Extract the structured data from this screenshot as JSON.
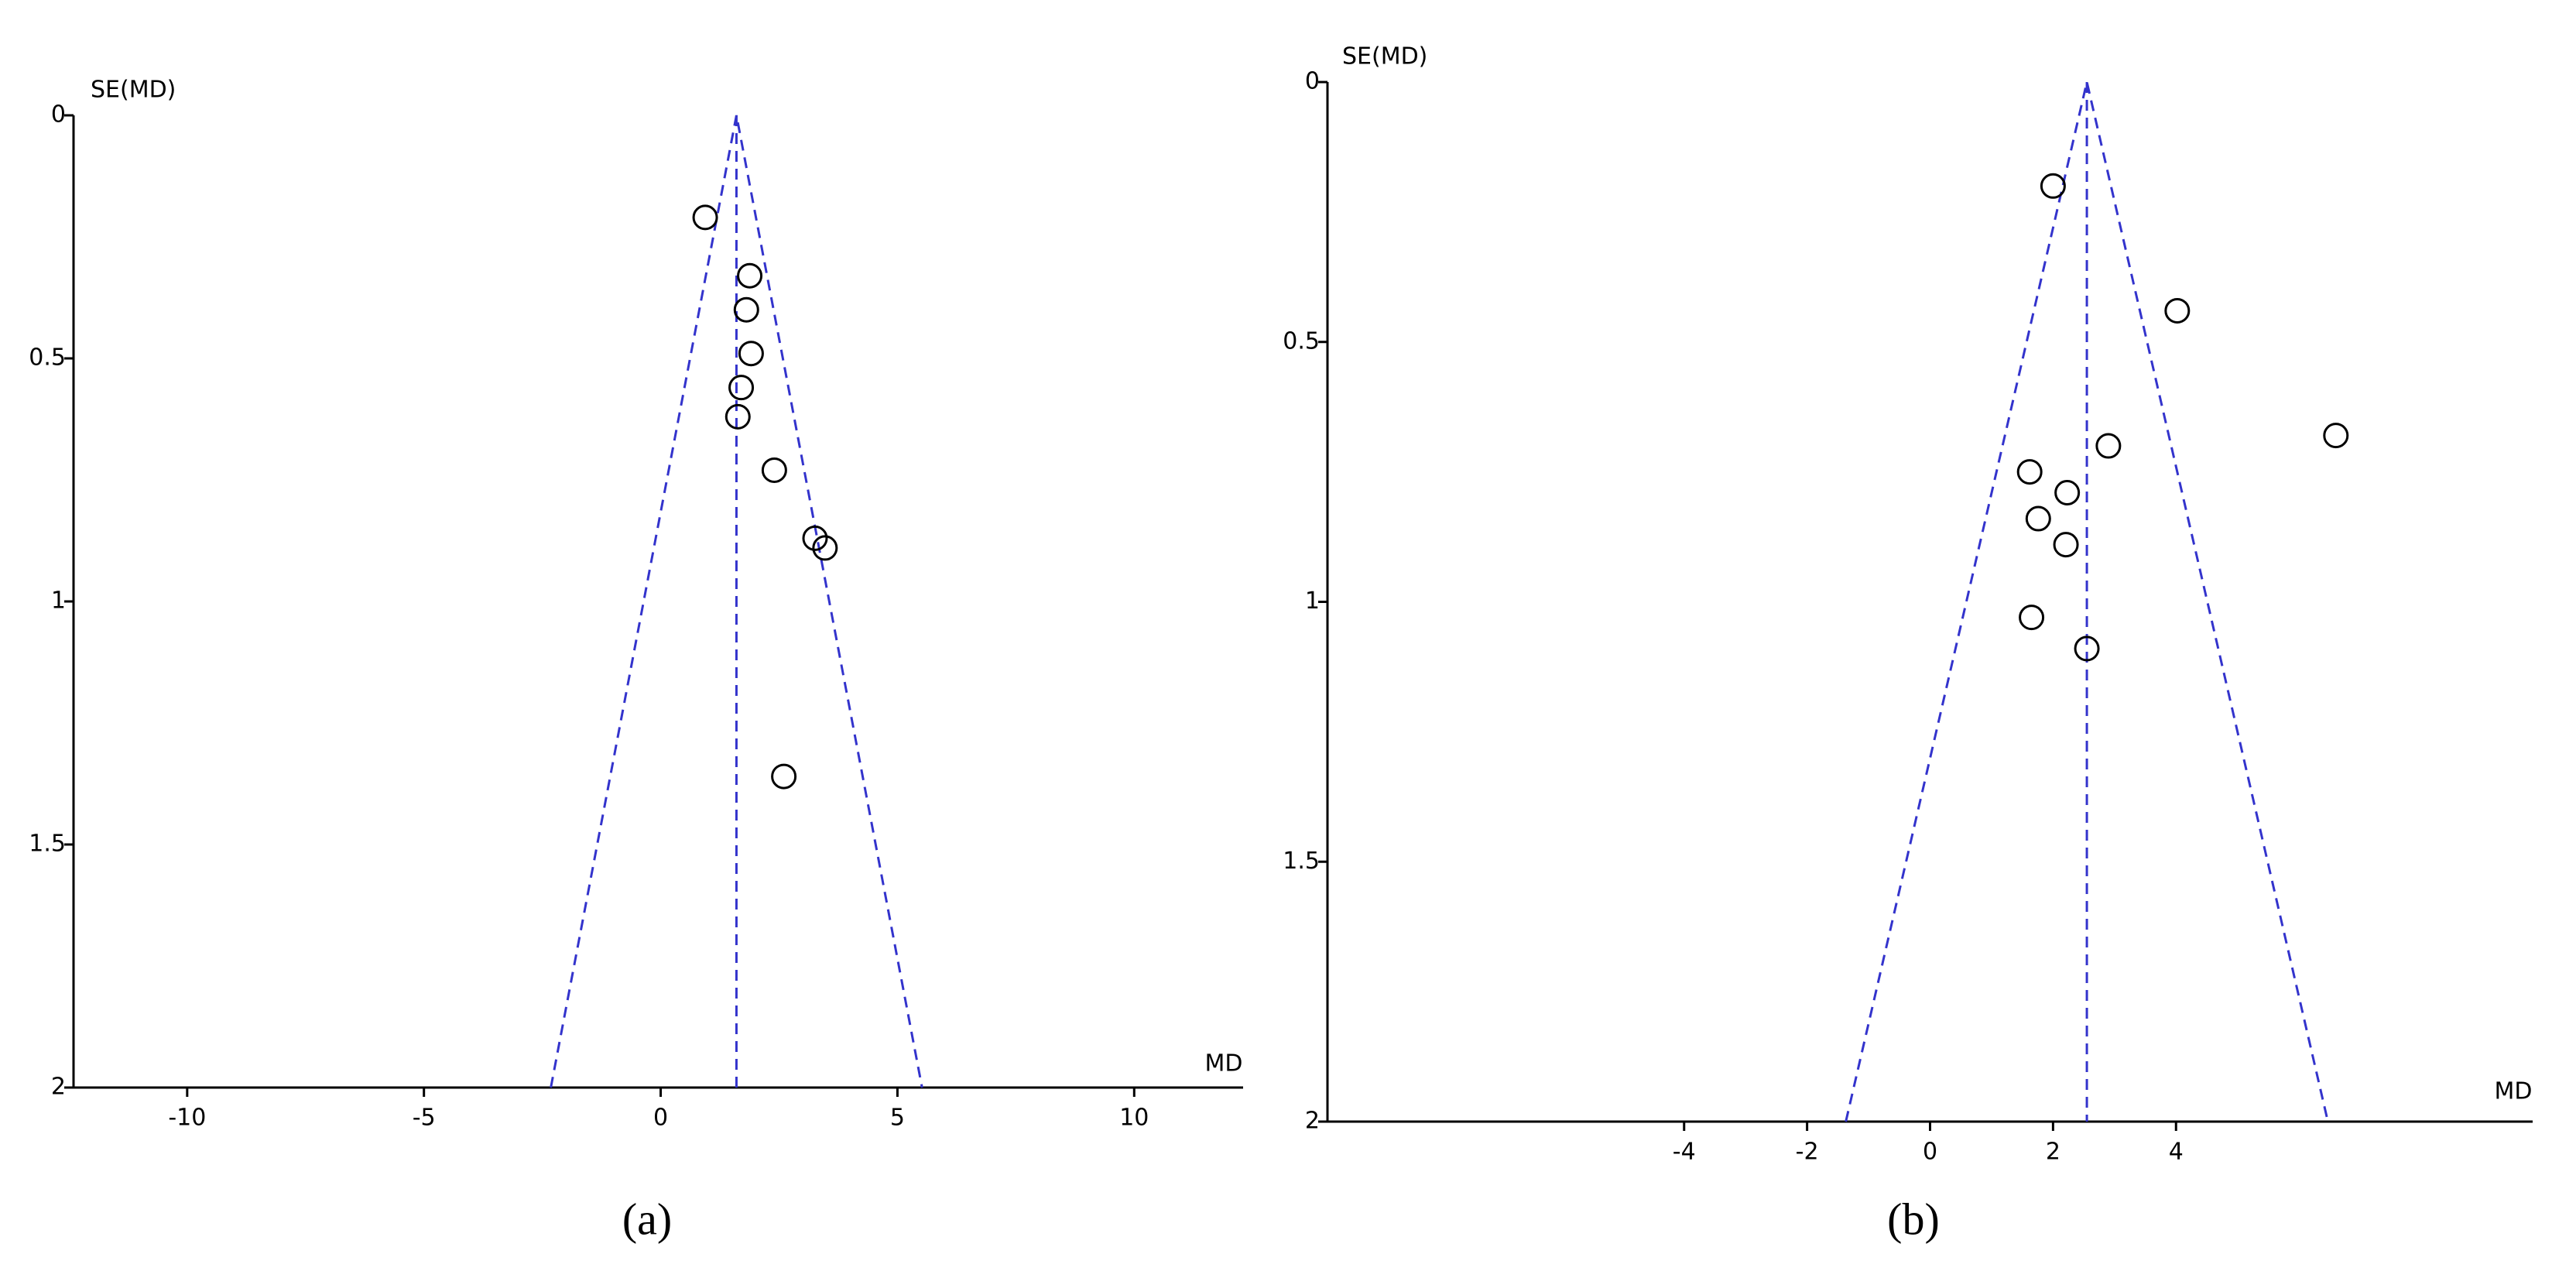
{
  "chart_data": [
    {
      "type": "scatter",
      "caption": "(a)",
      "x_label": "MD",
      "y_label": "SE(MD)",
      "x": [
        0.94,
        1.88,
        1.81,
        1.91,
        1.7,
        1.63,
        2.4,
        3.26,
        3.47,
        2.6
      ],
      "values": [
        0.21,
        0.33,
        0.4,
        0.49,
        0.56,
        0.62,
        0.73,
        0.87,
        0.89,
        1.36
      ],
      "center_x": 1.6,
      "funnel_x": [
        -2.32,
        1.6,
        5.52
      ],
      "funnel_y": [
        2,
        0,
        2
      ],
      "xlim": [
        -12.4,
        12.3
      ],
      "xticks": [
        -10,
        -5,
        0,
        5,
        10
      ],
      "ylim": [
        0,
        2
      ],
      "yticks": [
        0,
        0.5,
        1,
        1.5,
        2
      ],
      "y_inverted": true,
      "marker_color": "#000000",
      "funnel_color": "#3333cc"
    },
    {
      "type": "scatter",
      "caption": "(b)",
      "x_label": "MD",
      "y_label": "SE(MD)",
      "x": [
        2.0,
        4.02,
        6.6,
        2.9,
        1.62,
        2.23,
        1.76,
        2.21,
        1.65,
        2.55
      ],
      "values": [
        0.2,
        0.44,
        0.68,
        0.7,
        0.75,
        0.79,
        0.84,
        0.89,
        1.03,
        1.09
      ],
      "center_x": 2.55,
      "funnel_x": [
        -1.37,
        2.55,
        6.47
      ],
      "funnel_y": [
        2,
        0,
        2
      ],
      "xlim": [
        -9.8,
        9.8
      ],
      "xticks": [
        -4,
        -2,
        0,
        2,
        4
      ],
      "ylim": [
        0,
        2
      ],
      "yticks": [
        0,
        0.5,
        1,
        1.5,
        2
      ],
      "y_inverted": true,
      "marker_color": "#000000",
      "funnel_color": "#3333cc"
    }
  ]
}
